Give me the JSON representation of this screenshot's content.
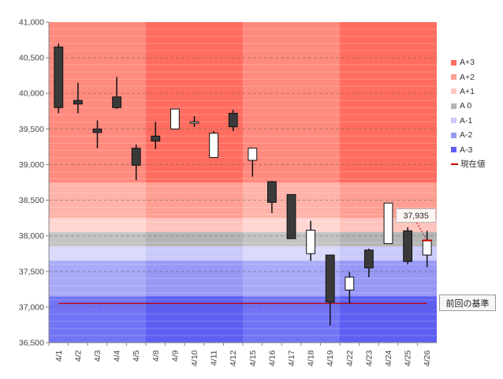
{
  "chart_data": {
    "type": "candlestick",
    "ylim": [
      36500,
      41000
    ],
    "y_ticks": [
      "41,000",
      "40,500",
      "40,000",
      "39,500",
      "39,000",
      "38,500",
      "38,000",
      "37,500",
      "37,000",
      "36,500"
    ],
    "y_tick_values": [
      41000,
      40500,
      40000,
      39500,
      39000,
      38500,
      38000,
      37500,
      37000,
      36500
    ],
    "categories": [
      "4/1",
      "4/2",
      "4/3",
      "4/4",
      "4/5",
      "4/8",
      "4/9",
      "4/10",
      "4/11",
      "4/12",
      "4/15",
      "4/16",
      "4/17",
      "4/18",
      "4/19",
      "4/22",
      "4/23",
      "4/24",
      "4/25",
      "4/26"
    ],
    "candles": [
      {
        "date": "4/1",
        "open": 40650,
        "high": 40700,
        "low": 39720,
        "close": 39800
      },
      {
        "date": "4/2",
        "open": 39900,
        "high": 40150,
        "low": 39720,
        "close": 39850
      },
      {
        "date": "4/3",
        "open": 39500,
        "high": 39620,
        "low": 39230,
        "close": 39450
      },
      {
        "date": "4/4",
        "open": 39950,
        "high": 40230,
        "low": 39780,
        "close": 39800
      },
      {
        "date": "4/5",
        "open": 39230,
        "high": 39280,
        "low": 38780,
        "close": 38990
      },
      {
        "date": "4/8",
        "open": 39400,
        "high": 39600,
        "low": 39220,
        "close": 39330
      },
      {
        "date": "4/9",
        "open": 39500,
        "high": 39780,
        "low": 39500,
        "close": 39780
      },
      {
        "date": "4/10",
        "open": 39580,
        "high": 39680,
        "low": 39530,
        "close": 39600
      },
      {
        "date": "4/11",
        "open": 39100,
        "high": 39470,
        "low": 39100,
        "close": 39440
      },
      {
        "date": "4/12",
        "open": 39720,
        "high": 39770,
        "low": 39470,
        "close": 39530
      },
      {
        "date": "4/15",
        "open": 39060,
        "high": 39230,
        "low": 38830,
        "close": 39230
      },
      {
        "date": "4/16",
        "open": 38760,
        "high": 38770,
        "low": 38320,
        "close": 38470
      },
      {
        "date": "4/17",
        "open": 38580,
        "high": 38580,
        "low": 37960,
        "close": 37960
      },
      {
        "date": "4/18",
        "open": 37750,
        "high": 38210,
        "low": 37650,
        "close": 38080
      },
      {
        "date": "4/19",
        "open": 37730,
        "high": 37730,
        "low": 36740,
        "close": 37070
      },
      {
        "date": "4/22",
        "open": 37240,
        "high": 37490,
        "low": 37050,
        "close": 37420
      },
      {
        "date": "4/23",
        "open": 37800,
        "high": 37820,
        "low": 37420,
        "close": 37550
      },
      {
        "date": "4/24",
        "open": 37890,
        "high": 38460,
        "low": 37890,
        "close": 38460
      },
      {
        "date": "4/25",
        "open": 38070,
        "high": 38120,
        "low": 37600,
        "close": 37640
      },
      {
        "date": "4/26",
        "open": 37730,
        "high": 38070,
        "low": 37560,
        "close": 37935
      }
    ],
    "bands": [
      {
        "name": "A+3",
        "from": 38750,
        "to": 41000,
        "color": "#ff8a7e",
        "shade": "#ff6d60"
      },
      {
        "name": "A+2",
        "from": 38250,
        "to": 38750,
        "color": "#ffb3a9",
        "shade": "#ff9f92"
      },
      {
        "name": "A+1",
        "from": 38050,
        "to": 38250,
        "color": "#ffd6d2",
        "shade": "#ffc4bd"
      },
      {
        "name": "A 0",
        "from": 37850,
        "to": 38050,
        "color": "#c4c4c4",
        "shade": "#b5b5b5"
      },
      {
        "name": "A-1",
        "from": 37650,
        "to": 37850,
        "color": "#d8d9fb",
        "shade": "#c9cafa"
      },
      {
        "name": "A-2",
        "from": 37150,
        "to": 37650,
        "color": "#a9abf8",
        "shade": "#9799f5"
      },
      {
        "name": "A-3",
        "from": 36500,
        "to": 37150,
        "color": "#7274f5",
        "shade": "#5d5ff2"
      }
    ],
    "shaded_week_ranges": [
      [
        5,
        9
      ],
      [
        15,
        19
      ]
    ],
    "current_value": 37935,
    "current_value_label": "37,935",
    "baseline_value": 37050,
    "baseline_label": "前回の基準",
    "legend": [
      {
        "label": "A+3",
        "color": "#ff6d60",
        "kind": "box"
      },
      {
        "label": "A+2",
        "color": "#ff9f92",
        "kind": "box"
      },
      {
        "label": "A+1",
        "color": "#ffc8c1",
        "kind": "box"
      },
      {
        "label": "A 0",
        "color": "#b5b5b5",
        "kind": "box"
      },
      {
        "label": "A-1",
        "color": "#c9cafa",
        "kind": "box"
      },
      {
        "label": "A-2",
        "color": "#9799f5",
        "kind": "box"
      },
      {
        "label": "A-3",
        "color": "#5d5ff2",
        "kind": "box"
      },
      {
        "label": "現在値",
        "color": "#c00000",
        "kind": "line"
      }
    ]
  }
}
